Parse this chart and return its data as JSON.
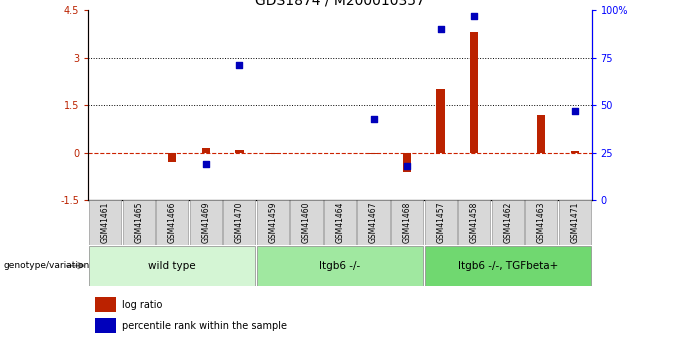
{
  "title": "GDS1874 / M200010357",
  "samples": [
    "GSM41461",
    "GSM41465",
    "GSM41466",
    "GSM41469",
    "GSM41470",
    "GSM41459",
    "GSM41460",
    "GSM41464",
    "GSM41467",
    "GSM41468",
    "GSM41457",
    "GSM41458",
    "GSM41462",
    "GSM41463",
    "GSM41471"
  ],
  "log_ratio": [
    0.0,
    0.0,
    -0.3,
    0.15,
    0.1,
    -0.05,
    0.0,
    0.0,
    -0.05,
    -0.6,
    2.0,
    3.8,
    0.0,
    1.2,
    0.05
  ],
  "percentile_rank": [
    null,
    null,
    null,
    19,
    71,
    null,
    null,
    null,
    43,
    18,
    90,
    97,
    null,
    null,
    47
  ],
  "groups": [
    {
      "label": "wild type",
      "start": 0,
      "end": 4,
      "color": "#d4f5d4"
    },
    {
      "label": "Itgb6 -/-",
      "start": 5,
      "end": 9,
      "color": "#a0e8a0"
    },
    {
      "label": "Itgb6 -/-, TGFbeta+",
      "start": 10,
      "end": 14,
      "color": "#70d870"
    }
  ],
  "left_ylim": [
    -1.5,
    4.5
  ],
  "right_ylim": [
    0,
    100
  ],
  "left_yticks": [
    -1.5,
    0.0,
    1.5,
    3.0,
    4.5
  ],
  "left_yticklabels": [
    "-1.5",
    "0",
    "1.5",
    "3",
    "4.5"
  ],
  "right_yticks": [
    0,
    25,
    50,
    75,
    100
  ],
  "right_yticklabels": [
    "0",
    "25",
    "50",
    "75",
    "100%"
  ],
  "hlines_dotted": [
    1.5,
    3.0
  ],
  "bar_color_red": "#bb2200",
  "bar_color_blue": "#0000bb",
  "zero_line_color": "#cc2200",
  "title_fontsize": 10,
  "label_fontsize": 7,
  "sample_fontsize": 6,
  "group_fontsize": 7.5,
  "legend_red": "log ratio",
  "legend_blue": "percentile rank within the sample",
  "genotype_label": "genotype/variation"
}
